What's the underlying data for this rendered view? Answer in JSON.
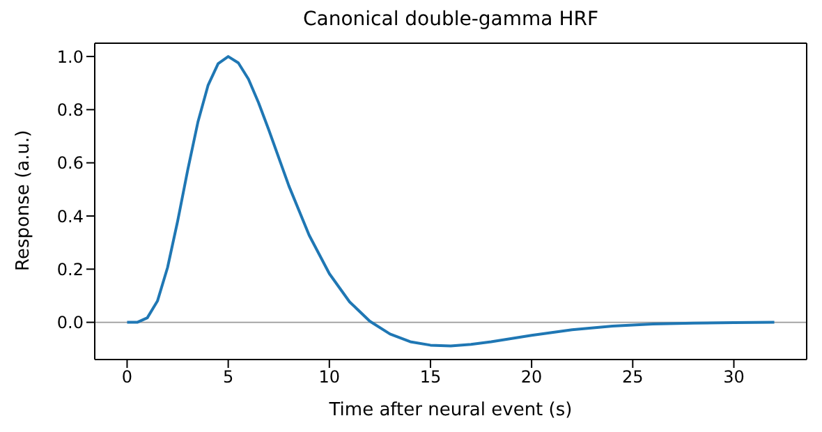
{
  "chart_data": {
    "type": "line",
    "title": "Canonical double-gamma HRF",
    "xlabel": "Time after neural event (s)",
    "ylabel": "Response (a.u.)",
    "x": [
      0,
      0.5,
      1,
      1.5,
      2,
      2.5,
      3,
      3.5,
      4,
      4.5,
      5,
      5.5,
      6,
      6.5,
      7,
      8,
      9,
      10,
      11,
      12,
      13,
      14,
      15,
      16,
      17,
      18,
      20,
      22,
      24,
      26,
      28,
      30,
      32
    ],
    "series": [
      {
        "color": "#1f77b4",
        "values": [
          0,
          0,
          0.017,
          0.08,
          0.206,
          0.381,
          0.574,
          0.753,
          0.891,
          0.973,
          1.0,
          0.976,
          0.915,
          0.826,
          0.725,
          0.513,
          0.328,
          0.183,
          0.077,
          0.004,
          -0.044,
          -0.073,
          -0.086,
          -0.089,
          -0.083,
          -0.073,
          -0.049,
          -0.028,
          -0.014,
          -0.006,
          -0.003,
          -0.001,
          0
        ]
      }
    ],
    "xlim": [
      -1.6,
      33.6
    ],
    "xticks": [
      0,
      5,
      10,
      15,
      20,
      25,
      30
    ],
    "ylim": [
      -0.14,
      1.05
    ],
    "yticks": [
      {
        "value": 0,
        "label": "0.0"
      },
      0.2,
      0.4,
      0.6,
      0.8,
      {
        "value": 1,
        "label": "1.0"
      }
    ],
    "ref_lines": [
      {
        "axis": "y",
        "value": 0,
        "color": "#999999"
      }
    ],
    "grid": false,
    "legend": false,
    "marker": "none",
    "line_style": "solid"
  }
}
